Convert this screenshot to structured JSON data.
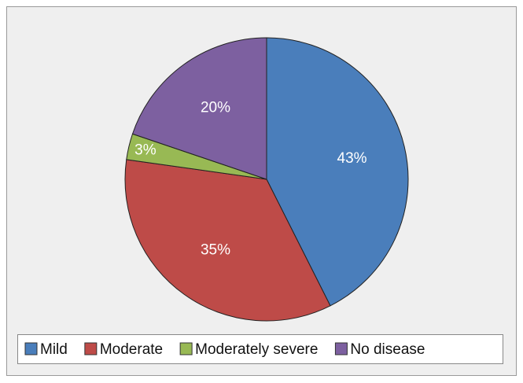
{
  "chart_data": {
    "type": "pie",
    "categories": [
      "Mild",
      "Moderate",
      "Moderately severe",
      "No disease"
    ],
    "values": [
      43,
      35,
      3,
      20
    ],
    "value_labels": [
      "43%",
      "35%",
      "3%",
      "20%"
    ],
    "colors": [
      "#4a7ebb",
      "#be4b48",
      "#98b954",
      "#7d60a0"
    ]
  }
}
